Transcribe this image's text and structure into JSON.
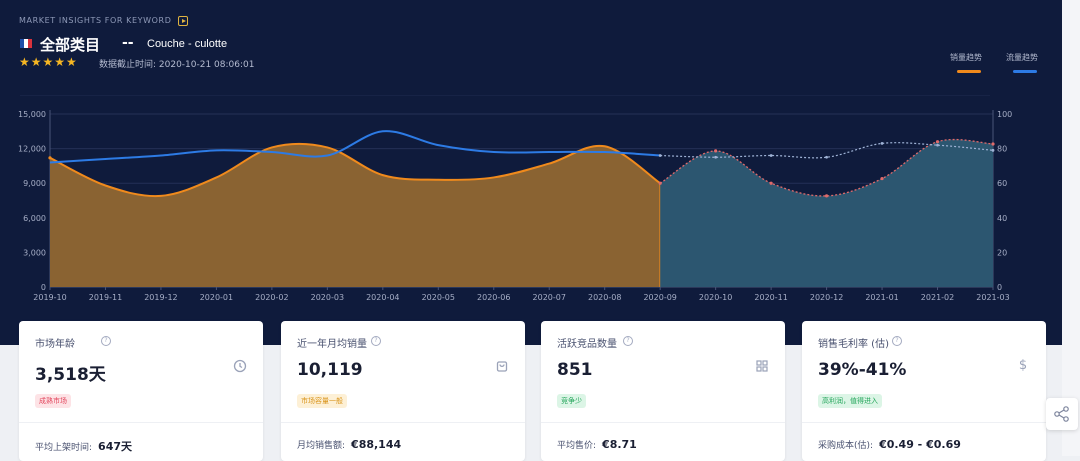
{
  "header": {
    "section_label": "MARKET INSIGHTS FOR KEYWORD",
    "category": "全部类目",
    "separator": "--",
    "keyword": "Couche - culotte",
    "rating_stars": 5,
    "data_date": "数据截止时间: 2020-10-21 08:06:01",
    "flag": "france"
  },
  "legend": [
    {
      "label": "销量趋势",
      "color": "#f08a1c"
    },
    {
      "label": "流量趋势",
      "color": "#2d7be5"
    }
  ],
  "chart_data": {
    "type": "area",
    "x": [
      "2019-10",
      "2019-11",
      "2019-12",
      "2020-01",
      "2020-02",
      "2020-03",
      "2020-04",
      "2020-05",
      "2020-06",
      "2020-07",
      "2020-08",
      "2020-09",
      "2020-10",
      "2020-11",
      "2020-12",
      "2021-01",
      "2021-02",
      "2021-03"
    ],
    "y_left_ticks": [
      "0",
      "3,000",
      "6,000",
      "9,000",
      "12,000",
      "15,000"
    ],
    "y_right_ticks": [
      "0",
      "20",
      "40",
      "60",
      "80",
      "100"
    ],
    "ylim_left": [
      0,
      15000
    ],
    "ylim_right": [
      0,
      100
    ],
    "split_at": "2020-09",
    "series": [
      {
        "name": "销量趋势",
        "axis": "left",
        "type": "area",
        "color": "#f08a1c",
        "values": [
          11200,
          8800,
          7900,
          9500,
          12100,
          12100,
          9700,
          9300,
          9500,
          10700,
          12200,
          9000,
          11800,
          9000,
          7900,
          9400,
          12600,
          12400
        ]
      },
      {
        "name": "流量趋势",
        "axis": "right",
        "type": "line",
        "color": "#2d7be5",
        "values": [
          72,
          74,
          76,
          79,
          78,
          76,
          90,
          82,
          78,
          78,
          78,
          76,
          75,
          76,
          75,
          83,
          82,
          79
        ]
      }
    ],
    "grid": true
  },
  "cards": [
    {
      "title": "市场年龄",
      "value": "3,518天",
      "icon": "clock-icon",
      "badge": "成熟市场",
      "badge_bg": "#fde3e6",
      "badge_fg": "#e2455c",
      "foot_label": "平均上架时间:",
      "foot_value": "647天"
    },
    {
      "title": "近一年月均销量",
      "value": "10,119",
      "icon": "bag-icon",
      "badge": "市场容量一般",
      "badge_bg": "#fdf0d6",
      "badge_fg": "#d9941a",
      "foot_label": "月均销售额:",
      "foot_value": "€88,144"
    },
    {
      "title": "活跃竞品数量",
      "value": "851",
      "icon": "grid-icon",
      "badge": "竞争少",
      "badge_bg": "#dcf5e6",
      "badge_fg": "#23a55a",
      "foot_label": "平均售价:",
      "foot_value": "€8.71"
    },
    {
      "title": "销售毛利率 (估)",
      "value": "39%-41%",
      "icon": "dollar-icon",
      "badge": "高利润，值得进入",
      "badge_bg": "#dcf5e6",
      "badge_fg": "#23a55a",
      "foot_label": "采购成本(估):",
      "foot_value": "€0.49 - €0.69"
    }
  ]
}
